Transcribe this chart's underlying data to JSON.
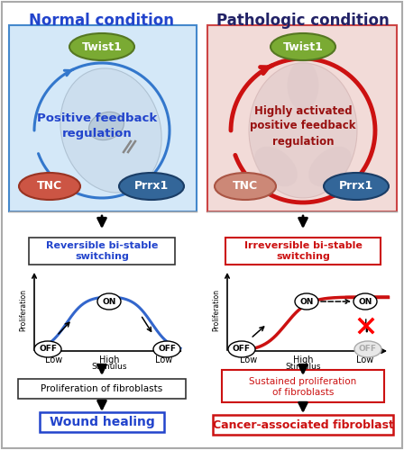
{
  "left_title": "Normal condition",
  "right_title": "Pathologic condition",
  "left_bg_color": "#d4e8f8",
  "right_bg_color": "#f2dbd8",
  "left_circle_color": "#3377cc",
  "right_circle_color": "#cc1111",
  "twist1_fill": "#7aaa33",
  "twist1_edge": "#557722",
  "tnc_fill_L": "#cc5544",
  "tnc_edge_L": "#993322",
  "prrx1_fill_L": "#336699",
  "prrx1_edge_L": "#1a3d66",
  "tnc_fill_R": "#cc8877",
  "tnc_edge_R": "#aa5544",
  "prrx1_fill_R": "#336699",
  "prrx1_edge_R": "#1a3d66",
  "left_feedback_text": "Positive feedback\nregulation",
  "right_feedback_text": "Highly activated\npositive feedback\nregulation",
  "left_switch_label": "Reversible bi-stable\nswitching",
  "right_switch_label": "Irreversible bi-stable\nswitching",
  "left_prolif_label": "Proliferation of fibroblasts",
  "right_prolif_label": "Sustained proliferation\nof fibroblasts",
  "left_outcome": "Wound healing",
  "right_outcome": "Cancer-associated fibroblast",
  "left_blue": "#2244cc",
  "right_red": "#cc1111",
  "curve_blue": "#3366cc",
  "curve_red": "#cc1111",
  "panel_border_left": "#4488cc",
  "panel_border_right": "#cc4444"
}
